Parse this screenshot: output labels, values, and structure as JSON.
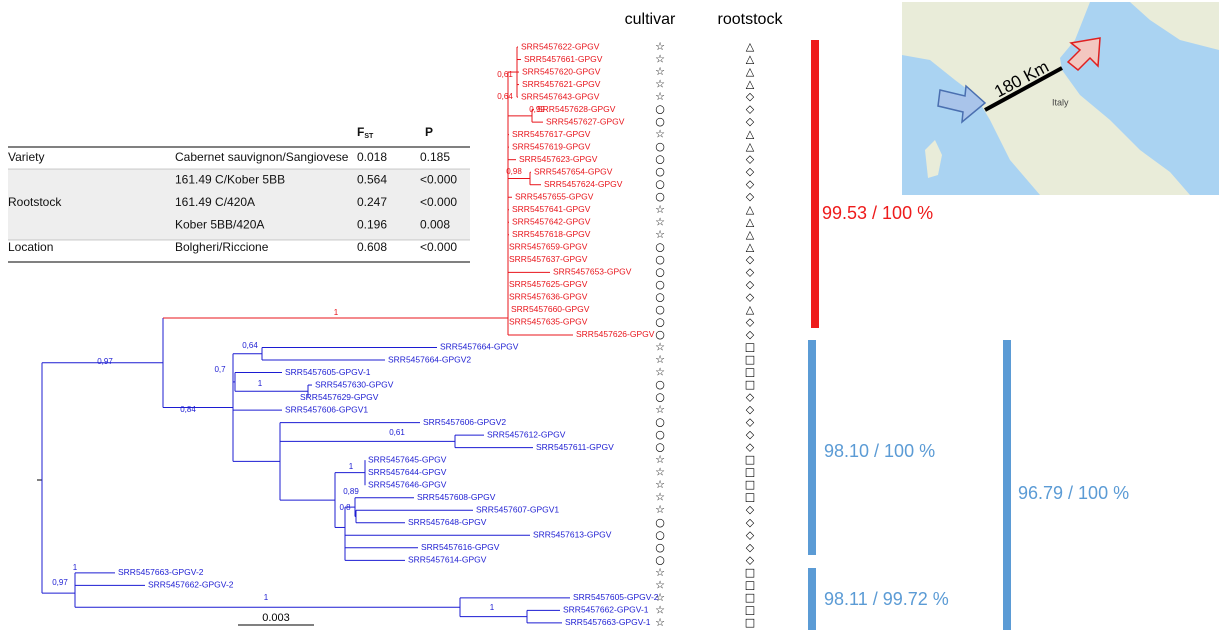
{
  "header": {
    "cultivar": "cultivar",
    "rootstock": "rootstock"
  },
  "table": {
    "columns": [
      {
        "main": "F",
        "sub": "ST"
      },
      {
        "main": "P"
      }
    ],
    "groups": [
      {
        "name": "Variety",
        "rows": [
          [
            "Cabernet sauvignon/Sangiovese",
            "0.018",
            "0.185"
          ]
        ]
      },
      {
        "name": "Rootstock",
        "rows": [
          [
            "161.49 C/Kober 5BB",
            "0.564",
            "<0.000"
          ],
          [
            "161.49 C/420A",
            "0.247",
            "<0.000"
          ],
          [
            "Kober 5BB/420A",
            "0.196",
            "0.008"
          ]
        ]
      },
      {
        "name": "Location",
        "rows": [
          [
            "Bolgheri/Riccione",
            "0.608",
            "<0.000"
          ]
        ]
      }
    ]
  },
  "tree": {
    "groups": [
      {
        "color": "#e8141b",
        "leaves": [
          {
            "label": "SRR5457622-GPGV",
            "cultivar": "☆",
            "rootstock": "△"
          },
          {
            "label": "SRR5457661-GPGV",
            "cultivar": "☆",
            "rootstock": "△"
          },
          {
            "label": "SRR5457620-GPGV",
            "cultivar": "☆",
            "rootstock": "△"
          },
          {
            "label": "SRR5457621-GPGV",
            "cultivar": "☆",
            "rootstock": "△"
          },
          {
            "label": "SRR5457643-GPGV",
            "cultivar": "☆",
            "rootstock": "◇"
          },
          {
            "label": "SRR5457628-GPGV",
            "cultivar": "○",
            "rootstock": "◇"
          },
          {
            "label": "SRR5457627-GPGV",
            "cultivar": "○",
            "rootstock": "◇"
          },
          {
            "label": "SRR5457617-GPGV",
            "cultivar": "☆",
            "rootstock": "△"
          },
          {
            "label": "SRR5457619-GPGV",
            "cultivar": "○",
            "rootstock": "△"
          },
          {
            "label": "SRR5457623-GPGV",
            "cultivar": "○",
            "rootstock": "◇"
          },
          {
            "label": "SRR5457654-GPGV",
            "cultivar": "○",
            "rootstock": "◇"
          },
          {
            "label": "SRR5457624-GPGV",
            "cultivar": "○",
            "rootstock": "◇"
          },
          {
            "label": "SRR5457655-GPGV",
            "cultivar": "○",
            "rootstock": "◇"
          },
          {
            "label": "SRR5457641-GPGV",
            "cultivar": "☆",
            "rootstock": "△"
          },
          {
            "label": "SRR5457642-GPGV",
            "cultivar": "☆",
            "rootstock": "△"
          },
          {
            "label": "SRR5457618-GPGV",
            "cultivar": "☆",
            "rootstock": "△"
          },
          {
            "label": "SRR5457659-GPGV",
            "cultivar": "○",
            "rootstock": "△"
          },
          {
            "label": "SRR5457637-GPGV",
            "cultivar": "○",
            "rootstock": "◇"
          },
          {
            "label": "SRR5457653-GPGV",
            "cultivar": "○",
            "rootstock": "◇"
          },
          {
            "label": "SRR5457625-GPGV",
            "cultivar": "○",
            "rootstock": "◇"
          },
          {
            "label": "SRR5457636-GPGV",
            "cultivar": "○",
            "rootstock": "◇"
          },
          {
            "label": "SRR5457660-GPGV",
            "cultivar": "○",
            "rootstock": "△"
          },
          {
            "label": "SRR5457635-GPGV",
            "cultivar": "○",
            "rootstock": "◇"
          },
          {
            "label": "SRR5457626-GPGV",
            "cultivar": "○",
            "rootstock": "◇"
          }
        ]
      },
      {
        "color": "#1c1cd2",
        "leaves": [
          {
            "label": "SRR5457664-GPGV",
            "cultivar": "☆",
            "rootstock": "□"
          },
          {
            "label": "SRR5457664-GPGV2",
            "cultivar": "☆",
            "rootstock": "□"
          },
          {
            "label": "SRR5457605-GPGV-1",
            "cultivar": "☆",
            "rootstock": "□"
          },
          {
            "label": "SRR5457630-GPGV",
            "cultivar": "○",
            "rootstock": "□"
          },
          {
            "label": "SRR5457629-GPGV",
            "cultivar": "○",
            "rootstock": "◇"
          },
          {
            "label": "SRR5457606-GPGV1",
            "cultivar": "☆",
            "rootstock": "◇"
          },
          {
            "label": "SRR5457606-GPGV2",
            "cultivar": "○",
            "rootstock": "◇"
          },
          {
            "label": "SRR5457612-GPGV",
            "cultivar": "○",
            "rootstock": "◇"
          },
          {
            "label": "SRR5457611-GPGV",
            "cultivar": "○",
            "rootstock": "◇"
          },
          {
            "label": "SRR5457645-GPGV",
            "cultivar": "☆",
            "rootstock": "□"
          },
          {
            "label": "SRR5457644-GPGV",
            "cultivar": "☆",
            "rootstock": "□"
          },
          {
            "label": "SRR5457646-GPGV",
            "cultivar": "☆",
            "rootstock": "□"
          },
          {
            "label": "SRR5457608-GPGV",
            "cultivar": "☆",
            "rootstock": "□"
          },
          {
            "label": "SRR5457607-GPGV1",
            "cultivar": "☆",
            "rootstock": "◇"
          },
          {
            "label": "SRR5457648-GPGV",
            "cultivar": "○",
            "rootstock": "◇"
          },
          {
            "label": "SRR5457613-GPGV",
            "cultivar": "○",
            "rootstock": "◇"
          },
          {
            "label": "SRR5457616-GPGV",
            "cultivar": "○",
            "rootstock": "◇"
          },
          {
            "label": "SRR5457614-GPGV",
            "cultivar": "○",
            "rootstock": "◇"
          },
          {
            "label": "SRR5457663-GPGV-2",
            "cultivar": "☆",
            "rootstock": "□"
          },
          {
            "label": "SRR5457662-GPGV-2",
            "cultivar": "☆",
            "rootstock": "□"
          },
          {
            "label": "SRR5457605-GPGV-2",
            "cultivar": "☆",
            "rootstock": "□"
          },
          {
            "label": "SRR5457662-GPGV-1",
            "cultivar": "☆",
            "rootstock": "□"
          },
          {
            "label": "SRR5457663-GPGV-1",
            "cultivar": "☆",
            "rootstock": "□"
          }
        ]
      }
    ],
    "supports": [
      "0,61",
      "0,64",
      "0,99",
      "0,98",
      "1",
      "0,97",
      "0,64",
      "0,7",
      "1",
      "0,84",
      "0,61",
      "1",
      "0,89",
      "0,8",
      "1",
      "0,97",
      "1",
      "1"
    ],
    "scale": "0.003"
  },
  "clades": [
    {
      "label": "99.53 / 100 %",
      "color": "#ee1b1b"
    },
    {
      "label": "98.10 / 100 %",
      "color": "#5b9bd5"
    },
    {
      "label": "98.11 / 99.72 %",
      "color": "#5b9bd5"
    },
    {
      "label": "96.79 / 100 %",
      "color": "#5b9bd5"
    }
  ],
  "map": {
    "distance": "180 Km",
    "country": "Italy"
  }
}
